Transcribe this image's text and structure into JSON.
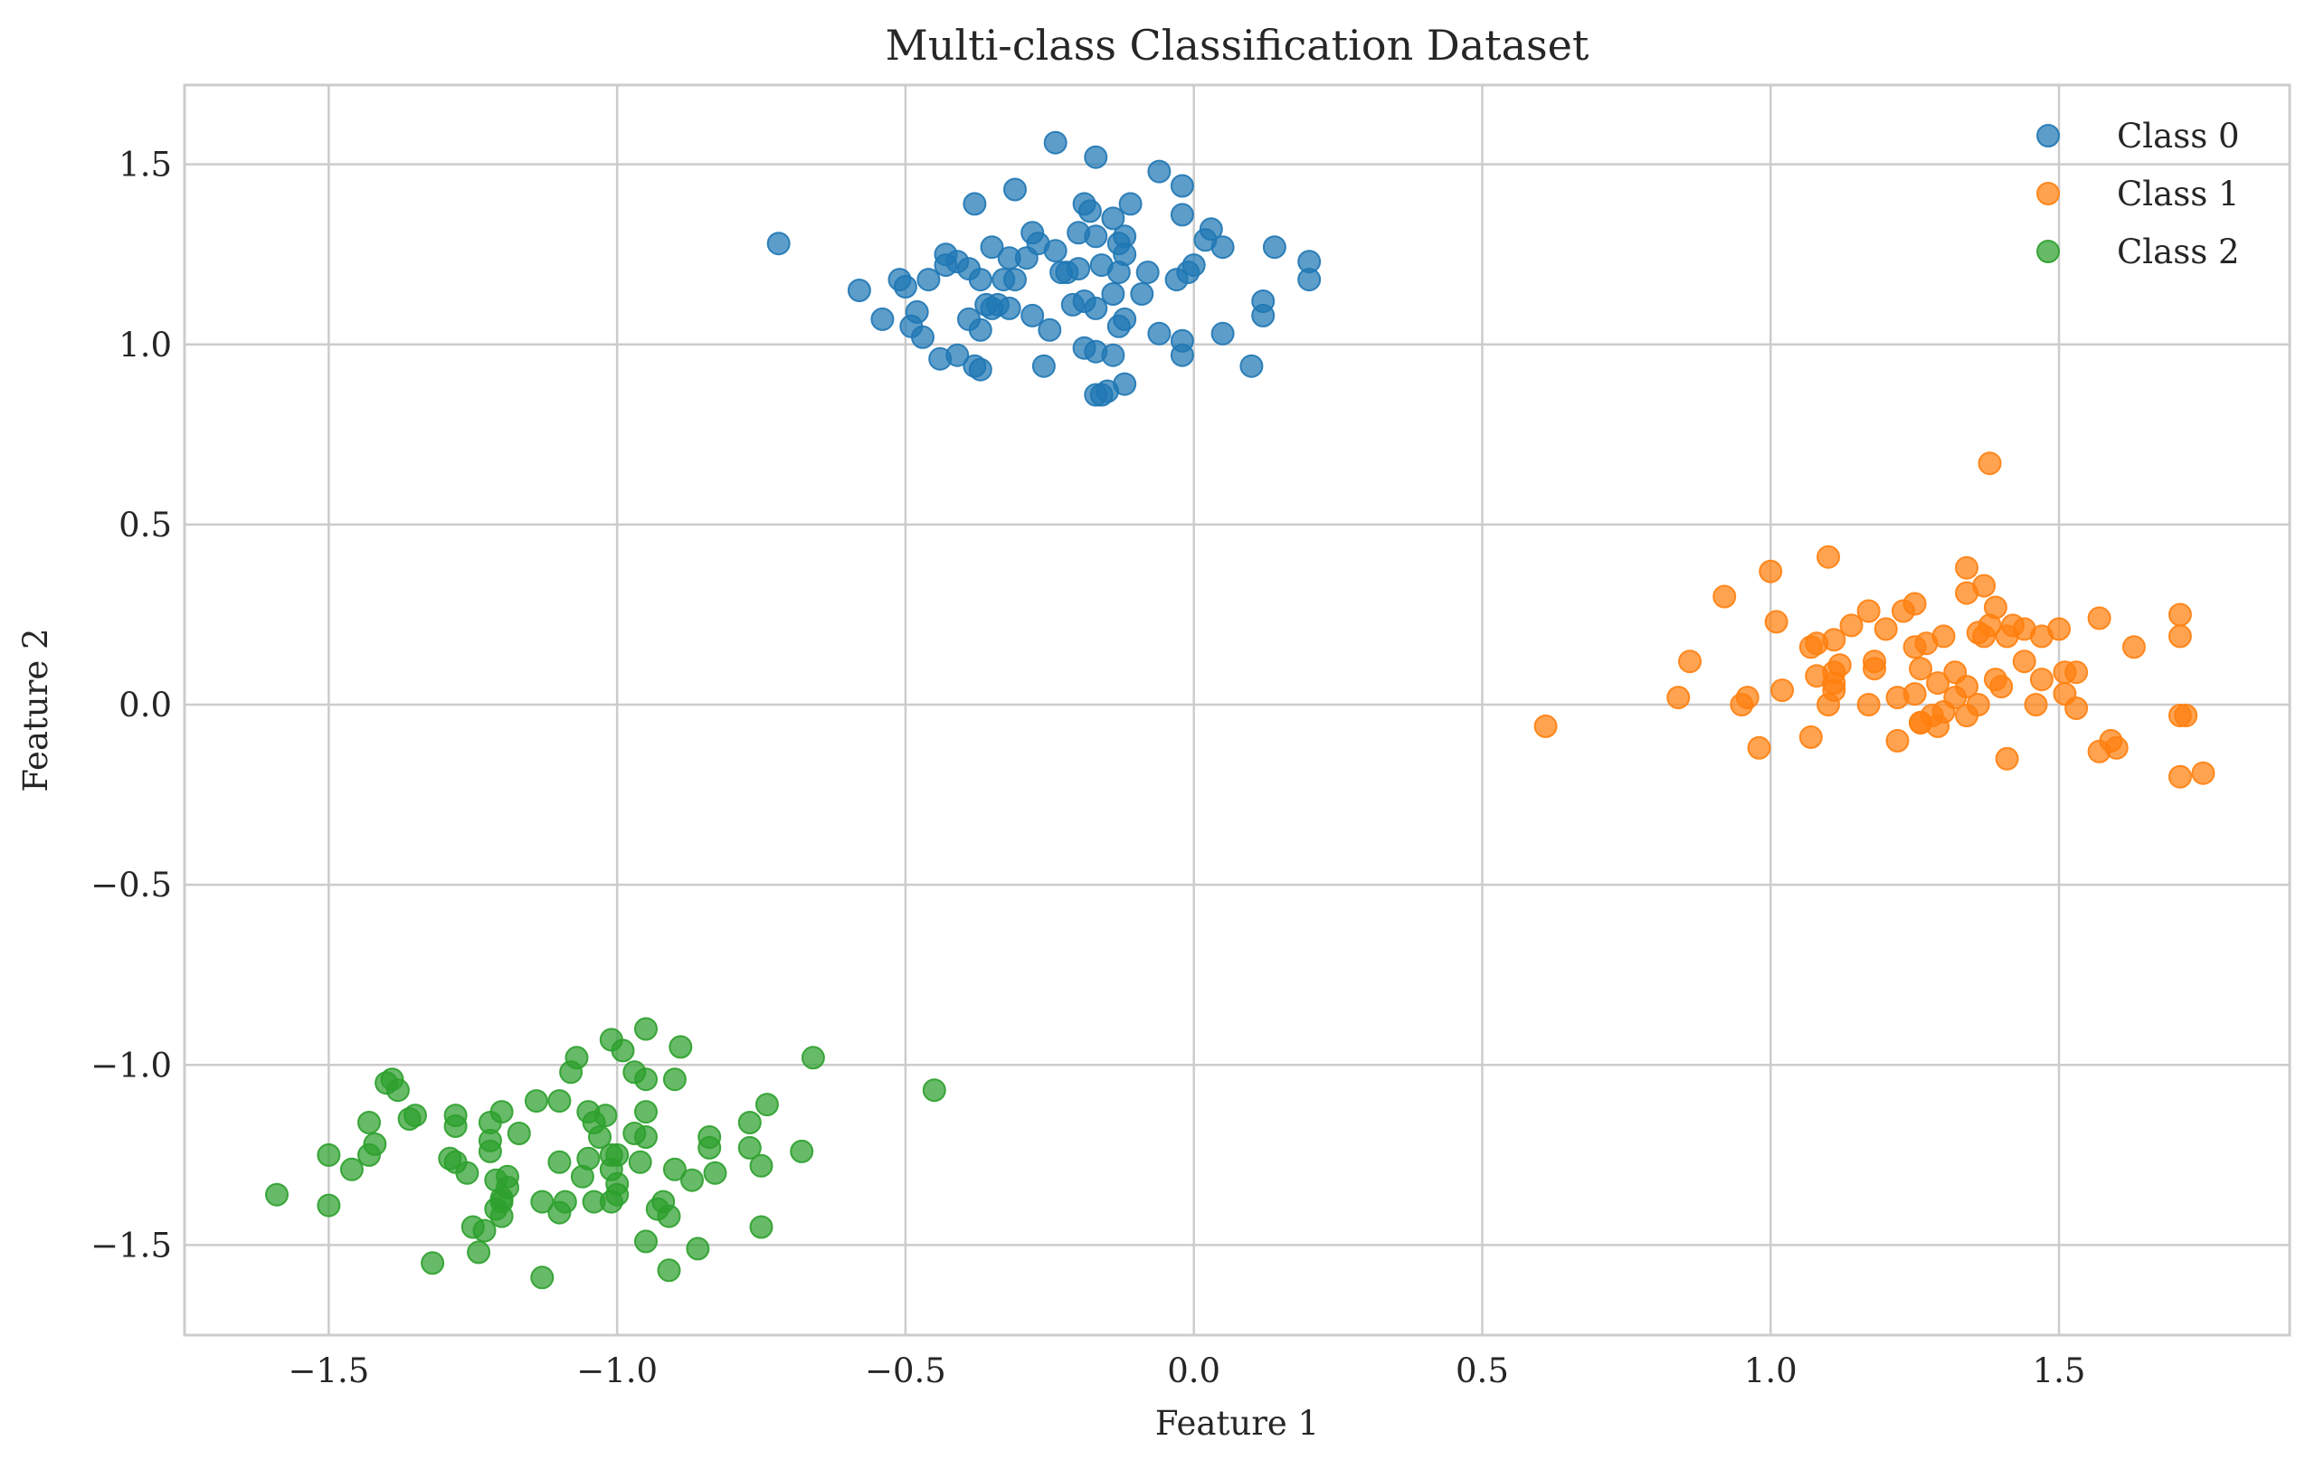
{
  "chart_data": {
    "type": "scatter",
    "title": "Multi-class Classification Dataset",
    "xlabel": "Feature 1",
    "ylabel": "Feature 2",
    "xlim": [
      -1.75,
      1.9
    ],
    "ylim": [
      -1.75,
      1.72
    ],
    "xticks": [
      -1.5,
      -1.0,
      -0.5,
      0.0,
      0.5,
      1.0,
      1.5
    ],
    "xtick_labels": [
      "−1.5",
      "−1.0",
      "−0.5",
      "0.0",
      "0.5",
      "1.0",
      "1.5"
    ],
    "yticks": [
      -1.5,
      -1.0,
      -0.5,
      0.0,
      0.5,
      1.0,
      1.5
    ],
    "ytick_labels": [
      "−1.5",
      "−1.0",
      "−0.5",
      "0.0",
      "0.5",
      "1.0",
      "1.5"
    ],
    "grid": true,
    "legend_position": "top-right",
    "series": [
      {
        "name": "Class 0",
        "color": "#1f77b4",
        "points": [
          [
            -0.72,
            1.28
          ],
          [
            -0.24,
            1.56
          ],
          [
            -0.17,
            1.52
          ],
          [
            -0.06,
            1.48
          ],
          [
            -0.02,
            1.44
          ],
          [
            -0.31,
            1.43
          ],
          [
            -0.38,
            1.39
          ],
          [
            -0.19,
            1.39
          ],
          [
            -0.11,
            1.39
          ],
          [
            -0.18,
            1.37
          ],
          [
            -0.02,
            1.36
          ],
          [
            -0.14,
            1.35
          ],
          [
            -0.28,
            1.31
          ],
          [
            0.03,
            1.32
          ],
          [
            -0.2,
            1.31
          ],
          [
            -0.12,
            1.3
          ],
          [
            -0.17,
            1.3
          ],
          [
            0.02,
            1.29
          ],
          [
            -0.27,
            1.28
          ],
          [
            -0.13,
            1.28
          ],
          [
            -0.35,
            1.27
          ],
          [
            0.14,
            1.27
          ],
          [
            0.05,
            1.27
          ],
          [
            -0.24,
            1.26
          ],
          [
            -0.12,
            1.25
          ],
          [
            -0.43,
            1.25
          ],
          [
            -0.32,
            1.24
          ],
          [
            -0.29,
            1.24
          ],
          [
            -0.41,
            1.23
          ],
          [
            0.2,
            1.23
          ],
          [
            -0.43,
            1.22
          ],
          [
            -0.39,
            1.21
          ],
          [
            -0.16,
            1.22
          ],
          [
            -0.2,
            1.21
          ],
          [
            -0.22,
            1.2
          ],
          [
            0.0,
            1.22
          ],
          [
            -0.01,
            1.2
          ],
          [
            -0.13,
            1.2
          ],
          [
            -0.23,
            1.2
          ],
          [
            -0.08,
            1.2
          ],
          [
            -0.46,
            1.18
          ],
          [
            -0.37,
            1.18
          ],
          [
            -0.31,
            1.18
          ],
          [
            -0.03,
            1.18
          ],
          [
            -0.51,
            1.18
          ],
          [
            0.2,
            1.18
          ],
          [
            -0.33,
            1.18
          ],
          [
            -0.5,
            1.16
          ],
          [
            -0.58,
            1.15
          ],
          [
            -0.14,
            1.14
          ],
          [
            -0.09,
            1.14
          ],
          [
            0.12,
            1.12
          ],
          [
            -0.19,
            1.12
          ],
          [
            -0.34,
            1.11
          ],
          [
            -0.36,
            1.11
          ],
          [
            -0.21,
            1.11
          ],
          [
            -0.17,
            1.1
          ],
          [
            -0.35,
            1.1
          ],
          [
            -0.32,
            1.1
          ],
          [
            -0.28,
            1.08
          ],
          [
            -0.48,
            1.09
          ],
          [
            -0.39,
            1.07
          ],
          [
            -0.54,
            1.07
          ],
          [
            -0.12,
            1.07
          ],
          [
            0.12,
            1.08
          ],
          [
            -0.13,
            1.05
          ],
          [
            -0.49,
            1.05
          ],
          [
            -0.25,
            1.04
          ],
          [
            -0.37,
            1.04
          ],
          [
            -0.06,
            1.03
          ],
          [
            0.05,
            1.03
          ],
          [
            -0.47,
            1.02
          ],
          [
            -0.02,
            1.01
          ],
          [
            -0.19,
            0.99
          ],
          [
            -0.17,
            0.98
          ],
          [
            -0.41,
            0.97
          ],
          [
            -0.02,
            0.97
          ],
          [
            -0.14,
            0.97
          ],
          [
            -0.44,
            0.96
          ],
          [
            -0.26,
            0.94
          ],
          [
            0.1,
            0.94
          ],
          [
            -0.38,
            0.94
          ],
          [
            -0.37,
            0.93
          ],
          [
            -0.12,
            0.89
          ],
          [
            -0.16,
            0.86
          ],
          [
            -0.15,
            0.87
          ],
          [
            -0.17,
            0.86
          ]
        ]
      },
      {
        "name": "Class 1",
        "color": "#ff7f0e",
        "points": [
          [
            1.38,
            0.67
          ],
          [
            1.1,
            0.41
          ],
          [
            1.0,
            0.37
          ],
          [
            1.34,
            0.38
          ],
          [
            1.37,
            0.33
          ],
          [
            0.92,
            0.3
          ],
          [
            1.34,
            0.31
          ],
          [
            1.25,
            0.28
          ],
          [
            1.39,
            0.27
          ],
          [
            1.17,
            0.26
          ],
          [
            1.23,
            0.26
          ],
          [
            1.57,
            0.24
          ],
          [
            1.71,
            0.25
          ],
          [
            1.01,
            0.23
          ],
          [
            1.38,
            0.22
          ],
          [
            1.42,
            0.22
          ],
          [
            1.14,
            0.22
          ],
          [
            1.2,
            0.21
          ],
          [
            1.5,
            0.21
          ],
          [
            1.44,
            0.21
          ],
          [
            1.36,
            0.2
          ],
          [
            1.3,
            0.19
          ],
          [
            1.37,
            0.19
          ],
          [
            1.41,
            0.19
          ],
          [
            1.71,
            0.19
          ],
          [
            1.47,
            0.19
          ],
          [
            1.27,
            0.17
          ],
          [
            1.11,
            0.18
          ],
          [
            1.08,
            0.17
          ],
          [
            1.25,
            0.16
          ],
          [
            1.07,
            0.16
          ],
          [
            1.63,
            0.16
          ],
          [
            0.86,
            0.12
          ],
          [
            1.18,
            0.12
          ],
          [
            1.44,
            0.12
          ],
          [
            1.12,
            0.11
          ],
          [
            1.18,
            0.1
          ],
          [
            1.53,
            0.09
          ],
          [
            1.11,
            0.09
          ],
          [
            1.32,
            0.09
          ],
          [
            1.51,
            0.09
          ],
          [
            1.26,
            0.1
          ],
          [
            1.08,
            0.08
          ],
          [
            1.39,
            0.07
          ],
          [
            1.47,
            0.07
          ],
          [
            1.11,
            0.06
          ],
          [
            1.29,
            0.06
          ],
          [
            1.34,
            0.05
          ],
          [
            1.4,
            0.05
          ],
          [
            1.02,
            0.04
          ],
          [
            1.25,
            0.03
          ],
          [
            1.11,
            0.04
          ],
          [
            1.51,
            0.03
          ],
          [
            1.22,
            0.02
          ],
          [
            0.84,
            0.02
          ],
          [
            0.96,
            0.02
          ],
          [
            1.32,
            0.02
          ],
          [
            1.36,
            0.0
          ],
          [
            1.46,
            0.0
          ],
          [
            1.53,
            -0.01
          ],
          [
            1.1,
            0.0
          ],
          [
            1.17,
            0.0
          ],
          [
            0.95,
            0.0
          ],
          [
            1.3,
            -0.02
          ],
          [
            1.28,
            -0.03
          ],
          [
            1.34,
            -0.03
          ],
          [
            1.71,
            -0.03
          ],
          [
            1.72,
            -0.03
          ],
          [
            1.26,
            -0.05
          ],
          [
            1.29,
            -0.06
          ],
          [
            0.61,
            -0.06
          ],
          [
            1.26,
            -0.05
          ],
          [
            1.07,
            -0.09
          ],
          [
            1.22,
            -0.1
          ],
          [
            1.59,
            -0.1
          ],
          [
            0.98,
            -0.12
          ],
          [
            1.57,
            -0.13
          ],
          [
            1.6,
            -0.12
          ],
          [
            1.41,
            -0.15
          ],
          [
            1.71,
            -0.2
          ],
          [
            1.75,
            -0.19
          ]
        ]
      },
      {
        "name": "Class 2",
        "color": "#2ca02c",
        "points": [
          [
            -0.95,
            -0.9
          ],
          [
            -1.01,
            -0.93
          ],
          [
            -0.89,
            -0.95
          ],
          [
            -0.66,
            -0.98
          ],
          [
            -0.99,
            -0.96
          ],
          [
            -1.07,
            -0.98
          ],
          [
            -0.97,
            -1.02
          ],
          [
            -1.08,
            -1.02
          ],
          [
            -0.95,
            -1.04
          ],
          [
            -0.9,
            -1.04
          ],
          [
            -1.39,
            -1.04
          ],
          [
            -1.4,
            -1.05
          ],
          [
            -1.38,
            -1.07
          ],
          [
            -0.45,
            -1.07
          ],
          [
            -1.1,
            -1.1
          ],
          [
            -0.74,
            -1.11
          ],
          [
            -1.14,
            -1.1
          ],
          [
            -1.05,
            -1.13
          ],
          [
            -0.95,
            -1.13
          ],
          [
            -1.2,
            -1.13
          ],
          [
            -1.02,
            -1.14
          ],
          [
            -1.35,
            -1.14
          ],
          [
            -1.28,
            -1.14
          ],
          [
            -1.36,
            -1.15
          ],
          [
            -1.22,
            -1.16
          ],
          [
            -1.04,
            -1.16
          ],
          [
            -0.77,
            -1.16
          ],
          [
            -1.43,
            -1.16
          ],
          [
            -1.28,
            -1.17
          ],
          [
            -1.17,
            -1.19
          ],
          [
            -0.97,
            -1.19
          ],
          [
            -0.95,
            -1.2
          ],
          [
            -1.03,
            -1.2
          ],
          [
            -0.84,
            -1.2
          ],
          [
            -1.22,
            -1.21
          ],
          [
            -1.42,
            -1.22
          ],
          [
            -0.77,
            -1.23
          ],
          [
            -0.84,
            -1.23
          ],
          [
            -1.22,
            -1.24
          ],
          [
            -0.68,
            -1.24
          ],
          [
            -1.0,
            -1.25
          ],
          [
            -1.43,
            -1.25
          ],
          [
            -1.01,
            -1.25
          ],
          [
            -1.05,
            -1.26
          ],
          [
            -1.5,
            -1.25
          ],
          [
            -1.29,
            -1.26
          ],
          [
            -1.28,
            -1.27
          ],
          [
            -1.1,
            -1.27
          ],
          [
            -0.96,
            -1.27
          ],
          [
            -0.75,
            -1.28
          ],
          [
            -1.46,
            -1.29
          ],
          [
            -1.26,
            -1.3
          ],
          [
            -1.01,
            -1.29
          ],
          [
            -0.9,
            -1.29
          ],
          [
            -0.83,
            -1.3
          ],
          [
            -1.19,
            -1.31
          ],
          [
            -1.06,
            -1.31
          ],
          [
            -1.21,
            -1.32
          ],
          [
            -0.87,
            -1.32
          ],
          [
            -1.0,
            -1.33
          ],
          [
            -1.19,
            -1.34
          ],
          [
            -1.2,
            -1.37
          ],
          [
            -1.0,
            -1.36
          ],
          [
            -1.2,
            -1.38
          ],
          [
            -1.09,
            -1.38
          ],
          [
            -1.13,
            -1.38
          ],
          [
            -1.04,
            -1.38
          ],
          [
            -1.01,
            -1.38
          ],
          [
            -0.92,
            -1.38
          ],
          [
            -1.59,
            -1.36
          ],
          [
            -1.21,
            -1.4
          ],
          [
            -1.5,
            -1.39
          ],
          [
            -1.1,
            -1.41
          ],
          [
            -0.93,
            -1.4
          ],
          [
            -0.91,
            -1.42
          ],
          [
            -1.2,
            -1.42
          ],
          [
            -1.25,
            -1.45
          ],
          [
            -0.75,
            -1.45
          ],
          [
            -1.23,
            -1.46
          ],
          [
            -0.95,
            -1.49
          ],
          [
            -0.86,
            -1.51
          ],
          [
            -1.24,
            -1.52
          ],
          [
            -1.32,
            -1.55
          ],
          [
            -0.91,
            -1.57
          ],
          [
            -1.13,
            -1.59
          ]
        ]
      }
    ]
  }
}
